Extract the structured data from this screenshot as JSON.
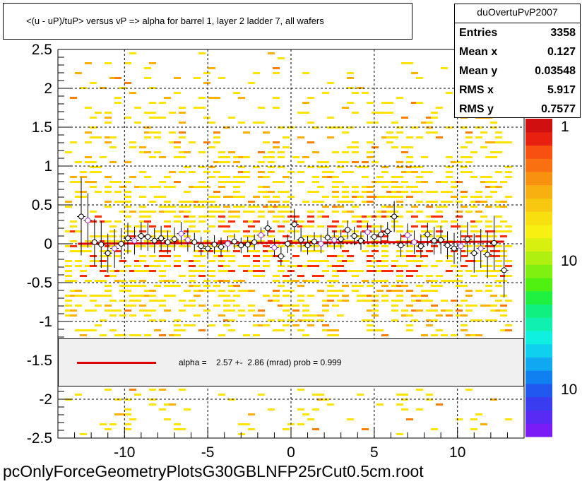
{
  "title": "<(u - uP)/tuP> versus   vP => alpha for barrel 1, layer 2 ladder 7, all wafers",
  "stats": {
    "name": "duOvertuPvP2007",
    "rows": [
      {
        "key": "Entries",
        "value": "3358"
      },
      {
        "key": "Mean x",
        "value": "0.127"
      },
      {
        "key": "Mean y",
        "value": "0.03548"
      },
      {
        "key": "RMS x",
        "value": "5.917"
      },
      {
        "key": "RMS y",
        "value": "0.7577"
      }
    ]
  },
  "legend": {
    "text": "alpha =    2.57 +-  2.86 (mrad) prob = 0.999",
    "line_color": "#e00000"
  },
  "footer": "pcOnlyForceGeometryPlotsG30GBLNFP25rCut0.5cm.root",
  "palette": {
    "labels": [
      "1",
      "10",
      "10"
    ],
    "colors": [
      "#7a1cf5",
      "#5a2af5",
      "#3a3cf0",
      "#2058f0",
      "#1080f0",
      "#10a8f0",
      "#10d0f0",
      "#10f0e0",
      "#10f0b0",
      "#10f080",
      "#20f040",
      "#50f010",
      "#80f010",
      "#b0f010",
      "#d8f010",
      "#f8f010",
      "#f8e010",
      "#f8c810",
      "#f8b010",
      "#f89010",
      "#f87010",
      "#f85010",
      "#e82010",
      "#d01010"
    ]
  },
  "chart_data": {
    "type": "heatmap",
    "title": "<(u - uP)/tuP> versus   vP => alpha for barrel 1, layer 2 ladder 7, all wafers",
    "xlim": [
      -14,
      14
    ],
    "ylim": [
      -2.5,
      2.5
    ],
    "x_ticks": [
      "-10",
      "-5",
      "0",
      "5",
      "10"
    ],
    "y_ticks": [
      "2.5",
      "2",
      "1.5",
      "1",
      "0.5",
      "0",
      "-0.5",
      "-1",
      "-1.5",
      "-2",
      "-2.5"
    ],
    "grid": true,
    "fit_line": {
      "alpha_mrad": 2.57,
      "error_mrad": 2.86,
      "prob": 0.999,
      "x_range": [
        -12.8,
        12.8
      ],
      "y_value": 0.0
    },
    "profile_points": [
      {
        "x": -12.6,
        "y": 0.35,
        "err": 0.5
      },
      {
        "x": -12.2,
        "y": 0.3,
        "err": 0.35
      },
      {
        "x": -11.8,
        "y": 0.02,
        "err": 0.3
      },
      {
        "x": -11.4,
        "y": -0.01,
        "err": 0.3
      },
      {
        "x": -11.0,
        "y": -0.12,
        "err": 0.25
      },
      {
        "x": -10.6,
        "y": -0.06,
        "err": 0.25
      },
      {
        "x": -10.2,
        "y": 0.0,
        "err": 0.2
      },
      {
        "x": -9.8,
        "y": 0.07,
        "err": 0.2
      },
      {
        "x": -9.4,
        "y": 0.04,
        "err": 0.18
      },
      {
        "x": -9.0,
        "y": 0.1,
        "err": 0.18
      },
      {
        "x": -8.6,
        "y": 0.09,
        "err": 0.18
      },
      {
        "x": -8.2,
        "y": 0.04,
        "err": 0.16
      },
      {
        "x": -7.8,
        "y": 0.07,
        "err": 0.16
      },
      {
        "x": -7.4,
        "y": 0.02,
        "err": 0.15
      },
      {
        "x": -7.0,
        "y": 0.06,
        "err": 0.15
      },
      {
        "x": -6.6,
        "y": 0.13,
        "err": 0.15
      },
      {
        "x": -6.2,
        "y": 0.05,
        "err": 0.15
      },
      {
        "x": -5.8,
        "y": 0.02,
        "err": 0.12
      },
      {
        "x": -5.4,
        "y": -0.03,
        "err": 0.12
      },
      {
        "x": -5.0,
        "y": -0.06,
        "err": 0.12
      },
      {
        "x": -4.6,
        "y": -0.01,
        "err": 0.12
      },
      {
        "x": -4.2,
        "y": -0.04,
        "err": 0.12
      },
      {
        "x": -3.8,
        "y": 0.0,
        "err": 0.1
      },
      {
        "x": -3.4,
        "y": 0.03,
        "err": 0.1
      },
      {
        "x": -3.0,
        "y": -0.02,
        "err": 0.1
      },
      {
        "x": -2.6,
        "y": -0.01,
        "err": 0.1
      },
      {
        "x": -2.2,
        "y": 0.02,
        "err": 0.1
      },
      {
        "x": -1.8,
        "y": 0.11,
        "err": 0.1
      },
      {
        "x": -1.4,
        "y": 0.2,
        "err": 0.1
      },
      {
        "x": -1.0,
        "y": -0.05,
        "err": 0.12
      },
      {
        "x": -0.6,
        "y": -0.16,
        "err": 0.12
      },
      {
        "x": -0.2,
        "y": 0.0,
        "err": 0.12
      },
      {
        "x": 0.2,
        "y": 0.25,
        "err": 0.2
      },
      {
        "x": 0.6,
        "y": 0.05,
        "err": 0.15
      },
      {
        "x": 1.0,
        "y": -0.02,
        "err": 0.12
      },
      {
        "x": 1.4,
        "y": 0.03,
        "err": 0.12
      },
      {
        "x": 1.8,
        "y": 0.0,
        "err": 0.12
      },
      {
        "x": 2.2,
        "y": 0.08,
        "err": 0.12
      },
      {
        "x": 2.6,
        "y": 0.05,
        "err": 0.12
      },
      {
        "x": 3.0,
        "y": 0.06,
        "err": 0.12
      },
      {
        "x": 3.4,
        "y": 0.18,
        "err": 0.12
      },
      {
        "x": 3.8,
        "y": 0.1,
        "err": 0.12
      },
      {
        "x": 4.2,
        "y": 0.04,
        "err": 0.12
      },
      {
        "x": 4.6,
        "y": 0.15,
        "err": 0.12
      },
      {
        "x": 5.0,
        "y": 0.09,
        "err": 0.12
      },
      {
        "x": 5.4,
        "y": 0.12,
        "err": 0.12
      },
      {
        "x": 5.8,
        "y": 0.16,
        "err": 0.12
      },
      {
        "x": 6.2,
        "y": 0.35,
        "err": 0.2
      },
      {
        "x": 6.6,
        "y": -0.02,
        "err": 0.15
      },
      {
        "x": 7.0,
        "y": 0.11,
        "err": 0.15
      },
      {
        "x": 7.4,
        "y": 0.02,
        "err": 0.15
      },
      {
        "x": 7.8,
        "y": -0.03,
        "err": 0.15
      },
      {
        "x": 8.2,
        "y": 0.12,
        "err": 0.15
      },
      {
        "x": 8.6,
        "y": 0.04,
        "err": 0.18
      },
      {
        "x": 9.0,
        "y": 0.05,
        "err": 0.18
      },
      {
        "x": 9.4,
        "y": -0.02,
        "err": 0.18
      },
      {
        "x": 9.8,
        "y": -0.06,
        "err": 0.2
      },
      {
        "x": 10.2,
        "y": -0.03,
        "err": 0.2
      },
      {
        "x": 10.6,
        "y": 0.06,
        "err": 0.22
      },
      {
        "x": 11.0,
        "y": -0.12,
        "err": 0.25
      },
      {
        "x": 11.4,
        "y": -0.06,
        "err": 0.25
      },
      {
        "x": 11.8,
        "y": -0.14,
        "err": 0.3
      },
      {
        "x": 12.2,
        "y": 0.01,
        "err": 0.35
      },
      {
        "x": 12.8,
        "y": -0.34,
        "err": 0.35
      }
    ]
  }
}
